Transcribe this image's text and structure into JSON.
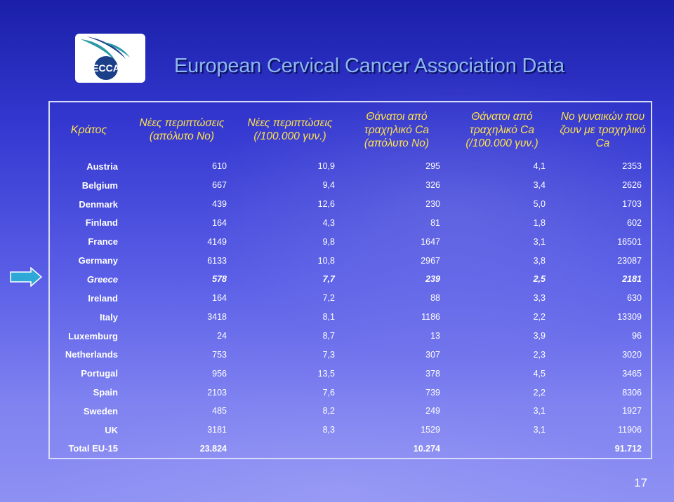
{
  "slide": {
    "title": "European Cervical Cancer Association Data",
    "logo_text": "ECCA",
    "page_number": "17",
    "colors": {
      "background_top": "#1a1fa8",
      "background_bottom": "#8e90f3",
      "title": "#8cb7ef",
      "header_text": "#ffe24a",
      "highlight_text": "#ffe24a",
      "body_text": "#ffffff",
      "arrow_fill": "#2fa8d8",
      "logo_teal": "#2a9aa6",
      "logo_navy": "#1c3f8a"
    },
    "icons": {
      "logo": "ecca-logo-icon",
      "pointer": "arrow-right-icon"
    }
  },
  "table": {
    "headers": [
      "Κράτος",
      "Νέες περιπτώσεις (απόλυτο Νο)",
      "Νέες περιπτώσεις (/100.000 γυν.)",
      "Θάνατοι από τραχηλικό Ca (απόλυτο Νο)",
      "Θάνατοι από τραχηλικό Ca (/100.000 γυν.)",
      "Νο γυναικών που ζουν με τραχηλικό Ca"
    ],
    "rows": [
      {
        "country": "Austria",
        "new_abs": "610",
        "new_rate": "10,9",
        "deaths_abs": "295",
        "deaths_rate": "4,1",
        "living": "2353",
        "highlight": false
      },
      {
        "country": "Belgium",
        "new_abs": "667",
        "new_rate": "9,4",
        "deaths_abs": "326",
        "deaths_rate": "3,4",
        "living": "2626",
        "highlight": false
      },
      {
        "country": "Denmark",
        "new_abs": "439",
        "new_rate": "12,6",
        "deaths_abs": "230",
        "deaths_rate": "5,0",
        "living": "1703",
        "highlight": false
      },
      {
        "country": "Finland",
        "new_abs": "164",
        "new_rate": "4,3",
        "deaths_abs": "81",
        "deaths_rate": "1,8",
        "living": "602",
        "highlight": false
      },
      {
        "country": "France",
        "new_abs": "4149",
        "new_rate": "9,8",
        "deaths_abs": "1647",
        "deaths_rate": "3,1",
        "living": "16501",
        "highlight": false
      },
      {
        "country": "Germany",
        "new_abs": "6133",
        "new_rate": "10,8",
        "deaths_abs": "2967",
        "deaths_rate": "3,8",
        "living": "23087",
        "highlight": false
      },
      {
        "country": "Greece",
        "new_abs": "578",
        "new_rate": "7,7",
        "deaths_abs": "239",
        "deaths_rate": "2,5",
        "living": "2181",
        "highlight": true
      },
      {
        "country": "Ireland",
        "new_abs": "164",
        "new_rate": "7,2",
        "deaths_abs": "88",
        "deaths_rate": "3,3",
        "living": "630",
        "highlight": false
      },
      {
        "country": "Italy",
        "new_abs": "3418",
        "new_rate": "8,1",
        "deaths_abs": "1186",
        "deaths_rate": "2,2",
        "living": "13309",
        "highlight": false
      },
      {
        "country": "Luxemburg",
        "new_abs": "24",
        "new_rate": "8,7",
        "deaths_abs": "13",
        "deaths_rate": "3,9",
        "living": "96",
        "highlight": false
      },
      {
        "country": "Netherlands",
        "new_abs": "753",
        "new_rate": "7,3",
        "deaths_abs": "307",
        "deaths_rate": "2,3",
        "living": "3020",
        "highlight": false
      },
      {
        "country": "Portugal",
        "new_abs": "956",
        "new_rate": "13,5",
        "deaths_abs": "378",
        "deaths_rate": "4,5",
        "living": "3465",
        "highlight": false
      },
      {
        "country": "Spain",
        "new_abs": "2103",
        "new_rate": "7,6",
        "deaths_abs": "739",
        "deaths_rate": "2,2",
        "living": "8306",
        "highlight": false
      },
      {
        "country": "Sweden",
        "new_abs": "485",
        "new_rate": "8,2",
        "deaths_abs": "249",
        "deaths_rate": "3,1",
        "living": "1927",
        "highlight": false
      },
      {
        "country": "UK",
        "new_abs": "3181",
        "new_rate": "8,3",
        "deaths_abs": "1529",
        "deaths_rate": "3,1",
        "living": "11906",
        "highlight": false
      }
    ],
    "total": {
      "country": "Total EU-15",
      "new_abs": "23.824",
      "new_rate": "",
      "deaths_abs": "10.274",
      "deaths_rate": "",
      "living": "91.712"
    }
  }
}
